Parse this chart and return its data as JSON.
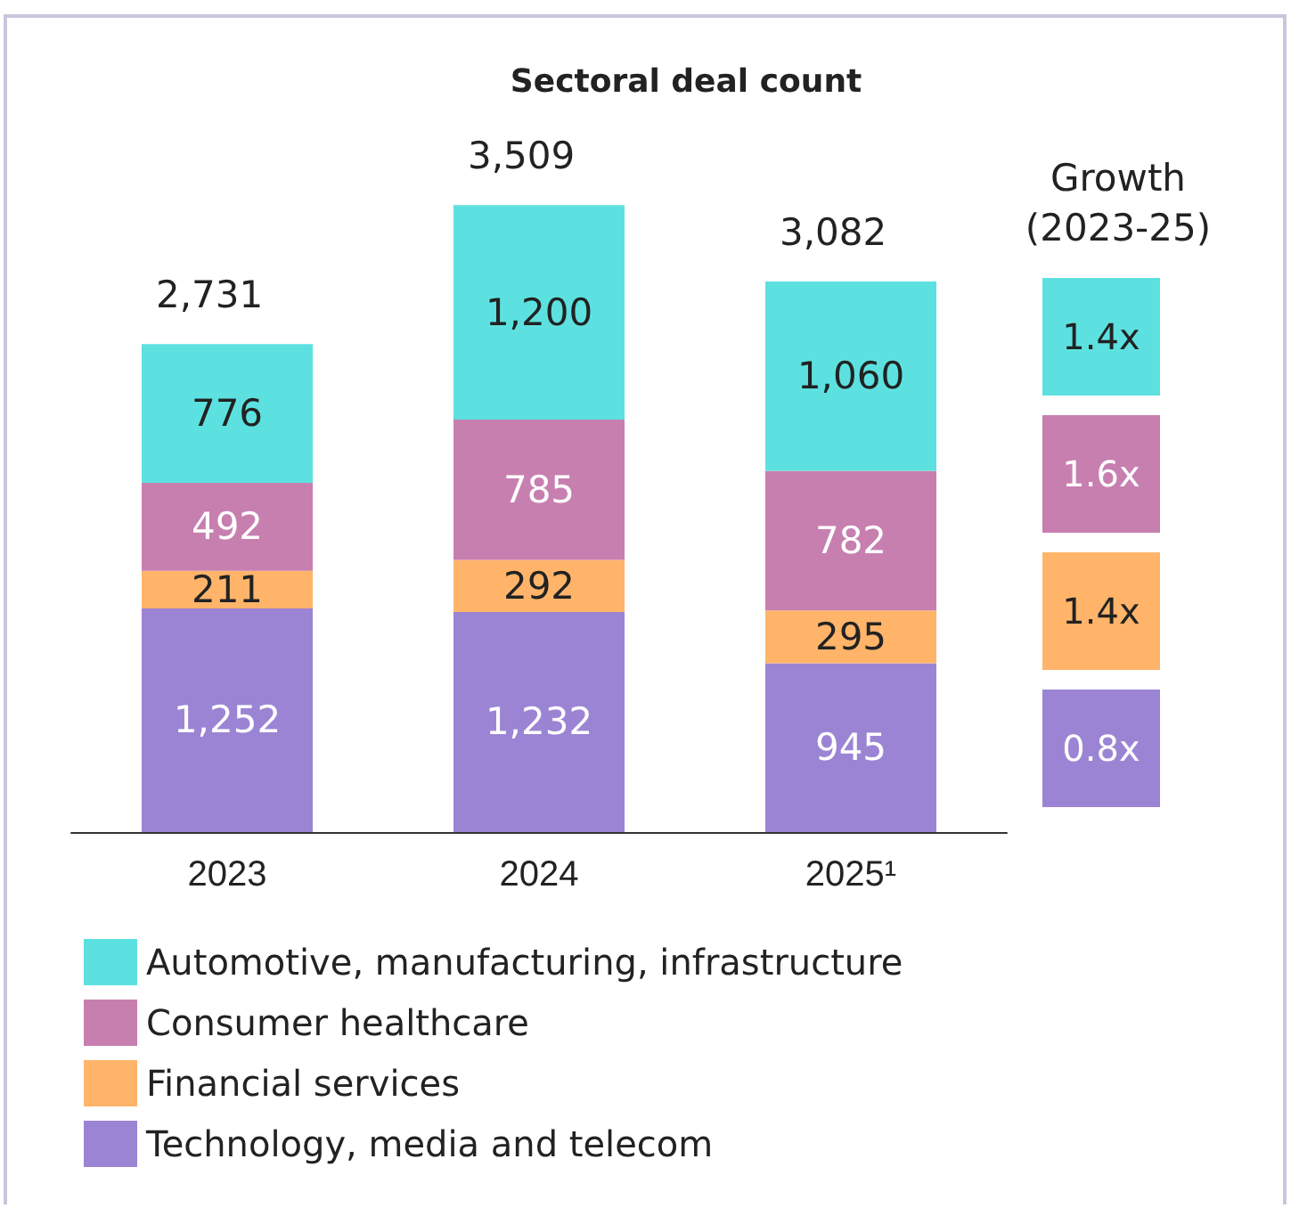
{
  "chart_data": {
    "type": "bar",
    "title": "Sectoral deal count",
    "categories": [
      "2023",
      "2024",
      "2025¹"
    ],
    "stacked": true,
    "legend": "bottom",
    "series": [
      {
        "name": "Technology, media and telecom",
        "color": "#9c84d4",
        "values": [
          1252,
          1232,
          945
        ],
        "value_labels": [
          "1,252",
          "1,232",
          "945"
        ]
      },
      {
        "name": "Financial services",
        "color": "#ffb46a",
        "values": [
          211,
          292,
          295
        ],
        "value_labels": [
          "211",
          "292",
          "295"
        ]
      },
      {
        "name": "Consumer healthcare",
        "color": "#c77fb0",
        "values": [
          492,
          785,
          782
        ],
        "value_labels": [
          "492",
          "785",
          "782"
        ]
      },
      {
        "name": "Automotive, manufacturing, infrastructure",
        "color": "#5ce1e0",
        "values": [
          776,
          1200,
          1060
        ],
        "value_labels": [
          "776",
          "1,200",
          "1,060"
        ]
      }
    ],
    "totals": [
      "2,731",
      "3,509",
      "3,082"
    ],
    "annotations": [
      "Growth (2023-25)",
      "1.4x",
      "1.6x",
      "1.4x",
      "0.8x"
    ]
  }
}
